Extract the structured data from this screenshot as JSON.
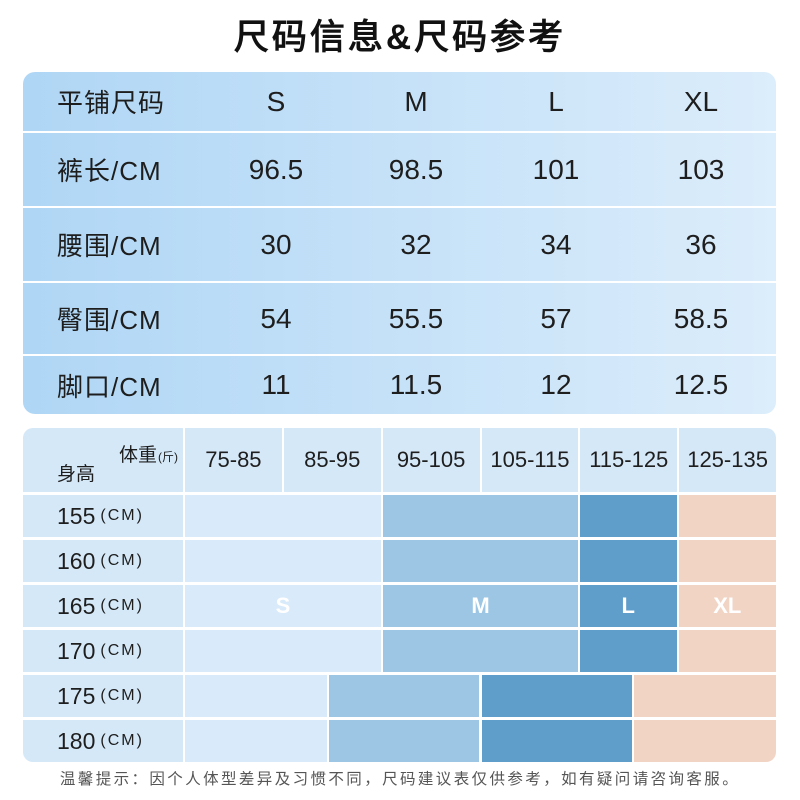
{
  "title": "尺码信息&尺码参考",
  "colors": {
    "title": "#111111",
    "size_table_gradient": [
      "#afd6f5",
      "#dcedfb"
    ],
    "guide_cell": "#d5e8f8",
    "footer_text": "#555555"
  },
  "size_table": {
    "header_label": "平铺尺码",
    "sizes": [
      "S",
      "M",
      "L",
      "XL"
    ],
    "rows": [
      {
        "label": "裤长/CM",
        "values": [
          "96.5",
          "98.5",
          "101",
          "103"
        ]
      },
      {
        "label": "腰围/CM",
        "values": [
          "30",
          "32",
          "34",
          "36"
        ]
      },
      {
        "label": "臀围/CM",
        "values": [
          "54",
          "55.5",
          "57",
          "58.5"
        ]
      },
      {
        "label": "脚口/CM",
        "values": [
          "11",
          "11.5",
          "12",
          "12.5"
        ]
      }
    ]
  },
  "size_guide": {
    "weight_label": "体重",
    "weight_unit": "(斤)",
    "height_label": "身高",
    "weight_ranges": [
      "75-85",
      "85-95",
      "95-105",
      "105-115",
      "115-125",
      "125-135"
    ],
    "weight_axis": [
      75,
      135
    ],
    "sizes": [
      {
        "name": "S",
        "color": "#d9eafa"
      },
      {
        "name": "M",
        "color": "#9cc6e3"
      },
      {
        "name": "L",
        "color": "#5f9dca"
      },
      {
        "name": "XL",
        "color": "#f1d4c4"
      }
    ],
    "rows": [
      {
        "height": "155",
        "unit": "(CM)",
        "ranges": [
          [
            75,
            95
          ],
          [
            95,
            115
          ],
          [
            115,
            125
          ],
          [
            125,
            135
          ]
        ]
      },
      {
        "height": "160",
        "unit": "(CM)",
        "ranges": [
          [
            75,
            95
          ],
          [
            95,
            115
          ],
          [
            115,
            125
          ],
          [
            125,
            135
          ]
        ]
      },
      {
        "height": "165",
        "unit": "(CM)",
        "ranges": [
          [
            75,
            95
          ],
          [
            95,
            115
          ],
          [
            115,
            125
          ],
          [
            125,
            135
          ]
        ],
        "labeled": true
      },
      {
        "height": "170",
        "unit": "(CM)",
        "ranges": [
          [
            75,
            95
          ],
          [
            95,
            115
          ],
          [
            115,
            125
          ],
          [
            125,
            135
          ]
        ]
      },
      {
        "height": "175",
        "unit": "(CM)",
        "ranges": [
          [
            75,
            89.5
          ],
          [
            89.5,
            105
          ],
          [
            105,
            120.5
          ],
          [
            120.5,
            135
          ]
        ]
      },
      {
        "height": "180",
        "unit": "(CM)",
        "ranges": [
          [
            75,
            89.5
          ],
          [
            89.5,
            105
          ],
          [
            105,
            120.5
          ],
          [
            120.5,
            135
          ]
        ]
      }
    ]
  },
  "footer": "温馨提示：因个人体型差异及习惯不同，尺码建议表仅供参考，如有疑问请咨询客服。"
}
